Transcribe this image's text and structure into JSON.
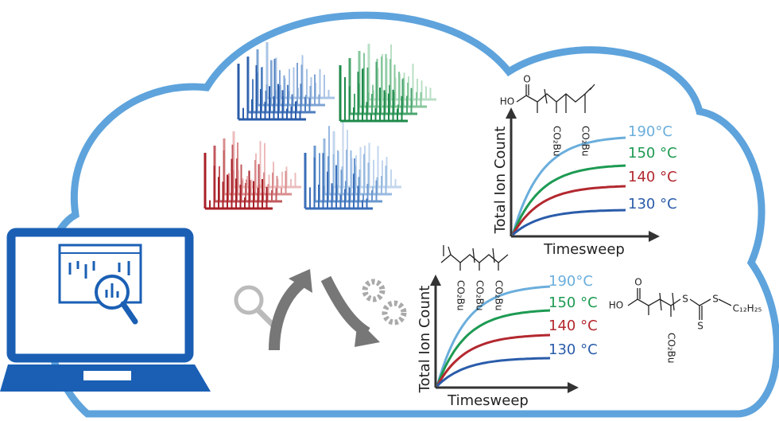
{
  "plots": [
    {
      "y_axis_label": "Total Ion Count",
      "x_axis_label": "Timesweep",
      "curves": [
        {
          "label": "190°C",
          "color": "#6aaedc"
        },
        {
          "label": "150 °C",
          "color": "#1d9a52"
        },
        {
          "label": "140 °C",
          "color": "#b3282f"
        },
        {
          "label": "130 °C",
          "color": "#2a5caa"
        }
      ]
    },
    {
      "y_axis_label": "Total Ion Count",
      "x_axis_label": "Timesweep",
      "curves": [
        {
          "label": "190°C",
          "color": "#6aaedc"
        },
        {
          "label": "150 °C",
          "color": "#1d9a52"
        },
        {
          "label": "140 °C",
          "color": "#b3282f"
        },
        {
          "label": "130 °C",
          "color": "#2a5caa"
        }
      ]
    }
  ],
  "structures": [
    {
      "labels": [
        "HO",
        "O",
        "CO₂Bu",
        "CO₂Bu"
      ]
    },
    {
      "labels": [
        "CO₂Bu",
        "CO₂Bu",
        "CO₂Bu"
      ]
    },
    {
      "labels": [
        "HO",
        "O",
        "S",
        "S",
        "S",
        "C₁₂H₂₅",
        "CO₂Bu"
      ]
    }
  ]
}
